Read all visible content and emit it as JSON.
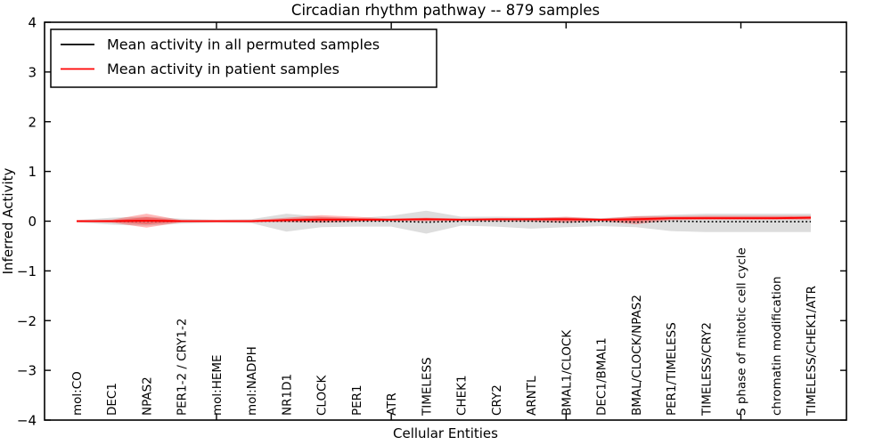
{
  "chart_data": {
    "type": "line",
    "title": "Circadian rhythm pathway -- 879 samples",
    "xlabel": "Cellular Entities",
    "ylabel": "Inferred Activity",
    "ylim": [
      -4,
      4
    ],
    "yticks": [
      4,
      3,
      2,
      1,
      0,
      -1,
      -2,
      -3,
      -4
    ],
    "xtick_indices": [
      4,
      9,
      14,
      19
    ],
    "grid": false,
    "legend_position": "upper left",
    "categories": [
      "mol:CO",
      "DEC1",
      "NPAS2",
      "PER1-2 / CRY1-2",
      "mol:HEME",
      "mol:NADPH",
      "NR1D1",
      "CLOCK",
      "PER1",
      "ATR",
      "TIMELESS",
      "CHEK1",
      "CRY2",
      "ARNTL",
      "BMAL1/CLOCK",
      "DEC1/BMAL1",
      "BMAL/CLOCK/NPAS2",
      "PER1/TIMELESS",
      "TIMELESS/CRY2",
      "S phase of mitotic cell cycle",
      "chromatin modification",
      "TIMELESS/CHEK1/ATR"
    ],
    "series": [
      {
        "name": "Mean activity in all permuted samples",
        "color": "#000000",
        "style": "dotted",
        "values": [
          0,
          0,
          0,
          0,
          0,
          0,
          0,
          -0.01,
          0,
          0,
          -0.02,
          0,
          0,
          0,
          -0.02,
          0,
          -0.02,
          0,
          -0.01,
          -0.01,
          -0.01,
          -0.01
        ]
      },
      {
        "name": "Mean activity in patient samples",
        "color": "#ff0000",
        "style": "solid",
        "values": [
          0,
          0,
          0.01,
          0,
          0,
          0,
          0.02,
          0.03,
          0.03,
          0.03,
          0.04,
          0.03,
          0.04,
          0.04,
          0.04,
          0.03,
          0.04,
          0.06,
          0.06,
          0.06,
          0.06,
          0.07
        ]
      }
    ],
    "bands": [
      {
        "name": "permuted-spread",
        "color": "#bbbbbb",
        "opacity": 0.5,
        "upper": [
          0.02,
          0.07,
          0.09,
          0.05,
          0.03,
          0.04,
          0.15,
          0.09,
          0.06,
          0.11,
          0.21,
          0.09,
          0.09,
          0.08,
          0.08,
          0.06,
          0.1,
          0.13,
          0.15,
          0.15,
          0.15,
          0.15
        ],
        "lower": [
          -0.02,
          -0.07,
          -0.09,
          -0.05,
          -0.03,
          -0.04,
          -0.21,
          -0.12,
          -0.11,
          -0.11,
          -0.25,
          -0.09,
          -0.11,
          -0.15,
          -0.12,
          -0.1,
          -0.12,
          -0.2,
          -0.22,
          -0.22,
          -0.22,
          -0.22
        ]
      },
      {
        "name": "patient-spread-outer",
        "color": "#ff0000",
        "opacity": 0.28,
        "upper": [
          0.01,
          0.03,
          0.15,
          0.02,
          0.01,
          0.02,
          0.07,
          0.12,
          0.09,
          0.05,
          0.07,
          0.05,
          0.05,
          0.06,
          0.09,
          0.05,
          0.1,
          0.1,
          0.11,
          0.11,
          0.11,
          0.11
        ],
        "lower": [
          -0.01,
          -0.03,
          -0.13,
          -0.02,
          -0.01,
          -0.02,
          -0.02,
          -0.03,
          -0.01,
          0,
          0,
          0,
          0,
          -0.01,
          -0.03,
          0,
          -0.06,
          0.02,
          0.03,
          0.03,
          0.03,
          0.03
        ]
      },
      {
        "name": "patient-spread-inner",
        "color": "#ff0000",
        "opacity": 0.32,
        "upper": [
          0.005,
          0.015,
          0.08,
          0.01,
          0.005,
          0.01,
          0.045,
          0.075,
          0.06,
          0.04,
          0.055,
          0.04,
          0.045,
          0.05,
          0.065,
          0.04,
          0.07,
          0.08,
          0.085,
          0.085,
          0.085,
          0.09
        ],
        "lower": [
          -0.005,
          -0.015,
          -0.06,
          -0.01,
          -0.005,
          -0.01,
          0,
          0,
          0.01,
          0.015,
          0.02,
          0.015,
          0.02,
          0.015,
          0.005,
          0.015,
          -0.01,
          0.04,
          0.045,
          0.045,
          0.045,
          0.05
        ]
      }
    ],
    "colors": {
      "axes": "#000000",
      "background": "#ffffff",
      "permuted_line": "#000000",
      "patient_line": "#ff0000"
    }
  }
}
